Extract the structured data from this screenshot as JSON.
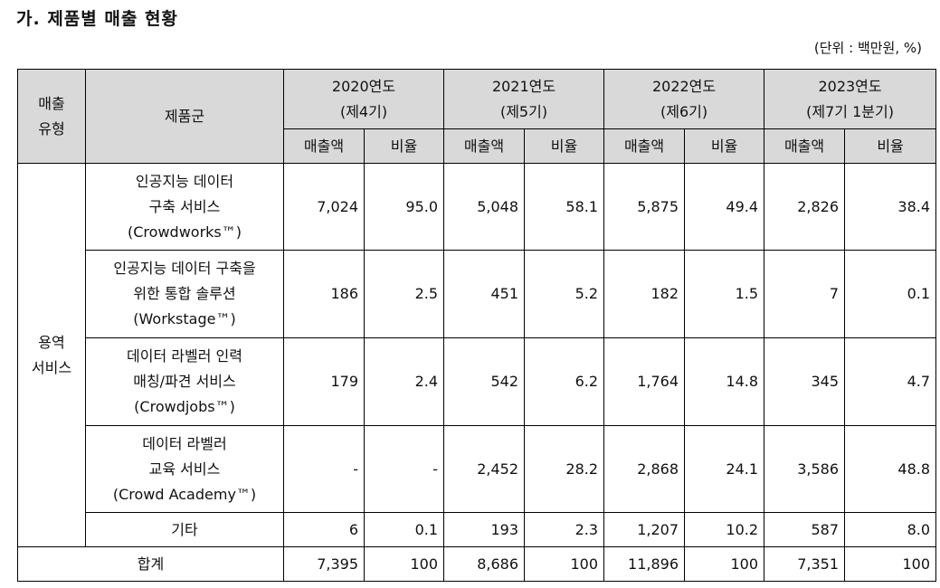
{
  "title": "가. 제품별 매출 현황",
  "unit_note": "(단위 : 백만원, %)",
  "headers": {
    "sales_type": "매출\n유형",
    "product_group": "제품군",
    "years": [
      {
        "label": "2020연도\n(제4기)"
      },
      {
        "label": "2021연도\n(제5기)"
      },
      {
        "label": "2022연도\n(제6기)"
      },
      {
        "label": "2023연도\n(제7기 1분기)"
      }
    ],
    "sub": {
      "amount": "매출액",
      "ratio": "비율"
    }
  },
  "category": "용역\n서비스",
  "rows": [
    {
      "product": "인공지능 데이터\n구축 서비스\n(Crowdworks™)",
      "v": [
        "7,024",
        "95.0",
        "5,048",
        "58.1",
        "5,875",
        "49.4",
        "2,826",
        "38.4"
      ]
    },
    {
      "product": "인공지능 데이터 구축을\n위한 통합 솔루션\n(Workstage™)",
      "v": [
        "186",
        "2.5",
        "451",
        "5.2",
        "182",
        "1.5",
        "7",
        "0.1"
      ]
    },
    {
      "product": "데이터 라벨러 인력\n매칭/파견 서비스\n(Crowdjobs™)",
      "v": [
        "179",
        "2.4",
        "542",
        "6.2",
        "1,764",
        "14.8",
        "345",
        "4.7"
      ]
    },
    {
      "product": "데이터 라벨러\n교육 서비스\n(Crowd Academy™)",
      "v": [
        "-",
        "-",
        "2,452",
        "28.2",
        "2,868",
        "24.1",
        "3,586",
        "48.8"
      ]
    },
    {
      "product": "기타",
      "v": [
        "6",
        "0.1",
        "193",
        "2.3",
        "1,207",
        "10.2",
        "587",
        "8.0"
      ]
    }
  ],
  "total": {
    "label": "합계",
    "v": [
      "7,395",
      "100",
      "8,686",
      "100",
      "11,896",
      "100",
      "7,351",
      "100"
    ]
  }
}
